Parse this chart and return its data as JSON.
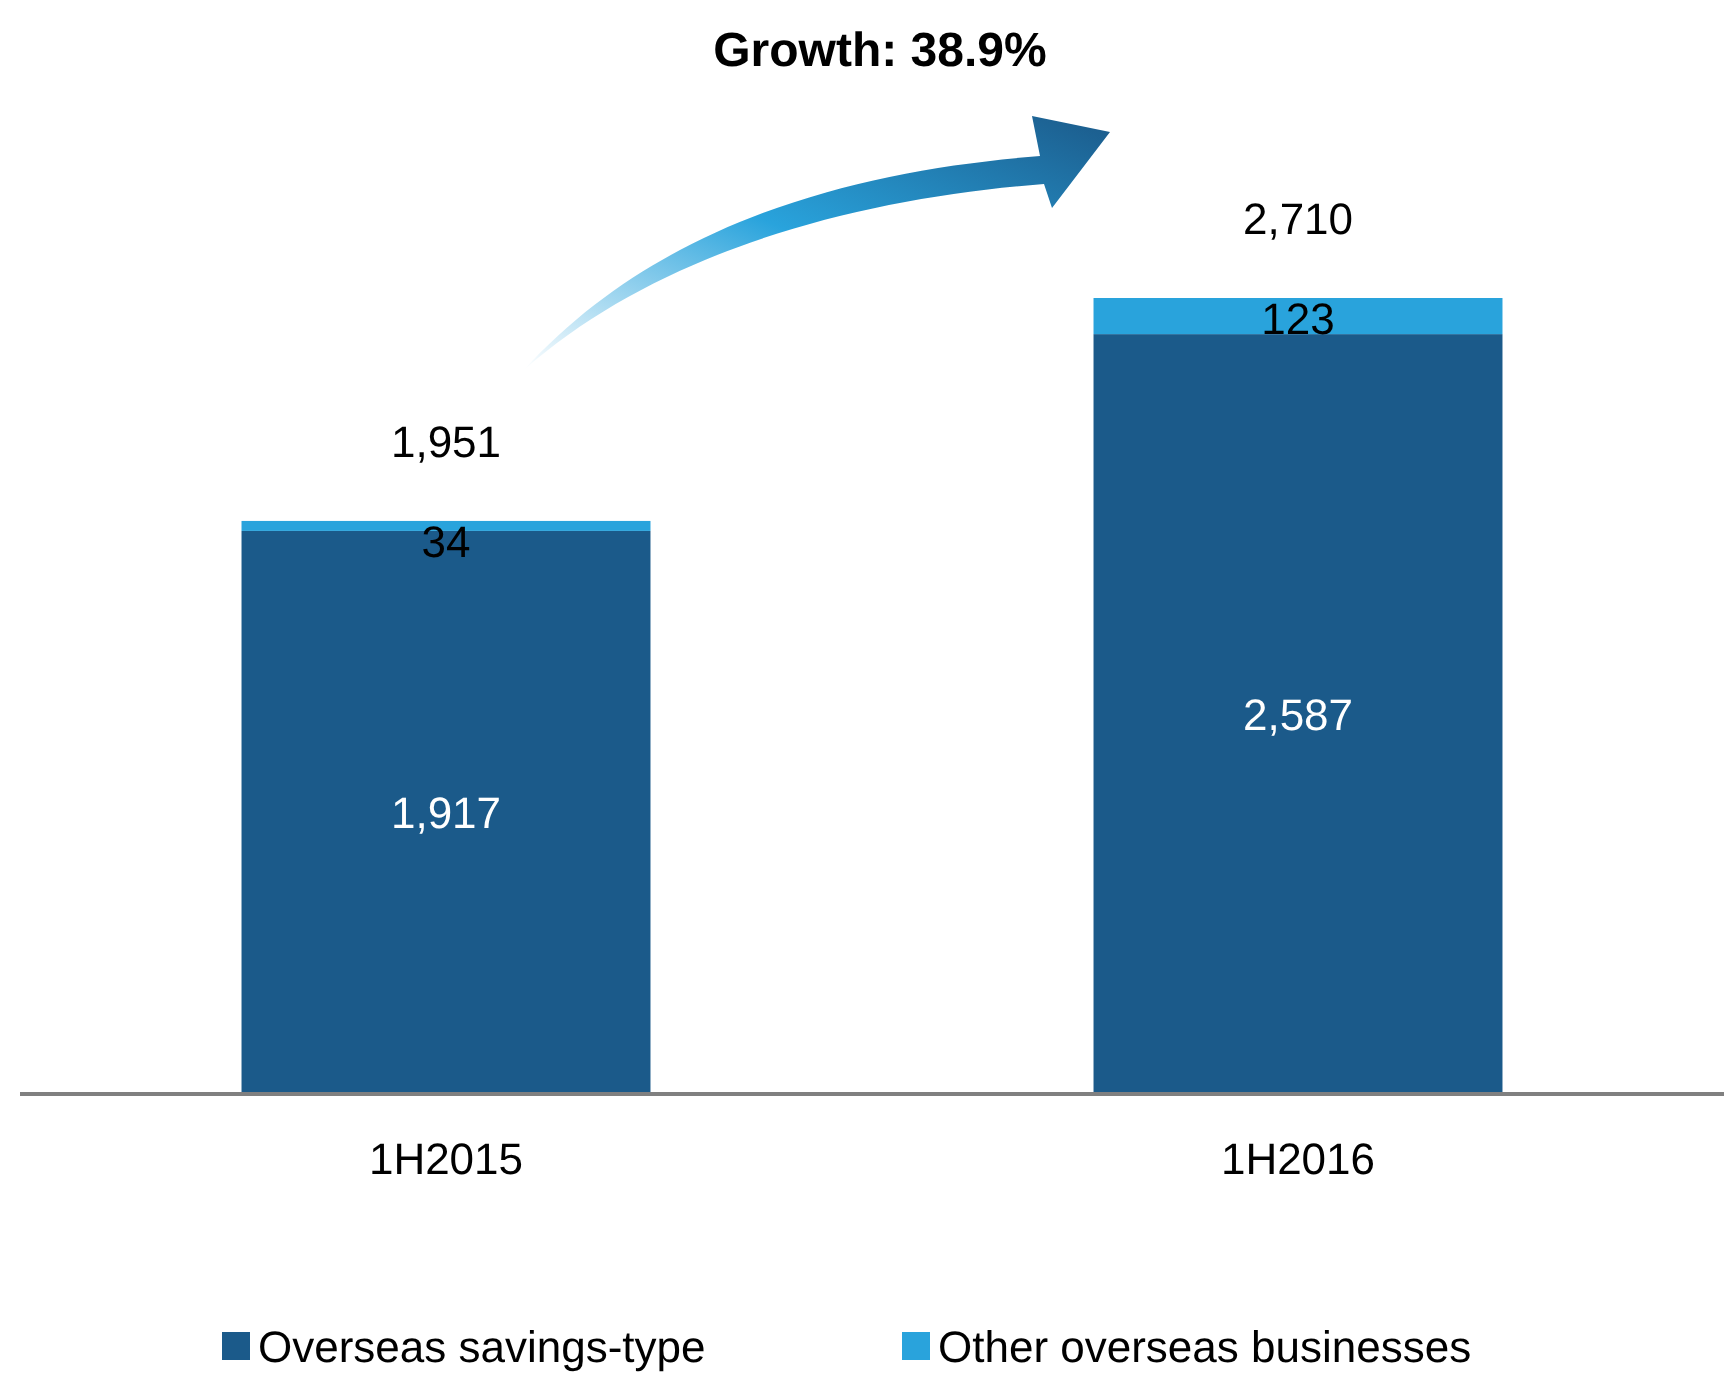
{
  "chart_data": {
    "type": "bar",
    "stacked": true,
    "categories": [
      "1H2015",
      "1H2016"
    ],
    "series": [
      {
        "name": "Overseas savings-type",
        "color": "#1b5a8a",
        "values": [
          1917,
          2587
        ],
        "value_labels": [
          "1,917",
          "2,587"
        ]
      },
      {
        "name": "Other overseas businesses",
        "color": "#29a3dc",
        "values": [
          34,
          123
        ],
        "value_labels": [
          "34",
          "123"
        ]
      }
    ],
    "totals": [
      "1,951",
      "2,710"
    ],
    "annotations": [
      "Growth: 38.9%"
    ],
    "legend": "bottom"
  }
}
